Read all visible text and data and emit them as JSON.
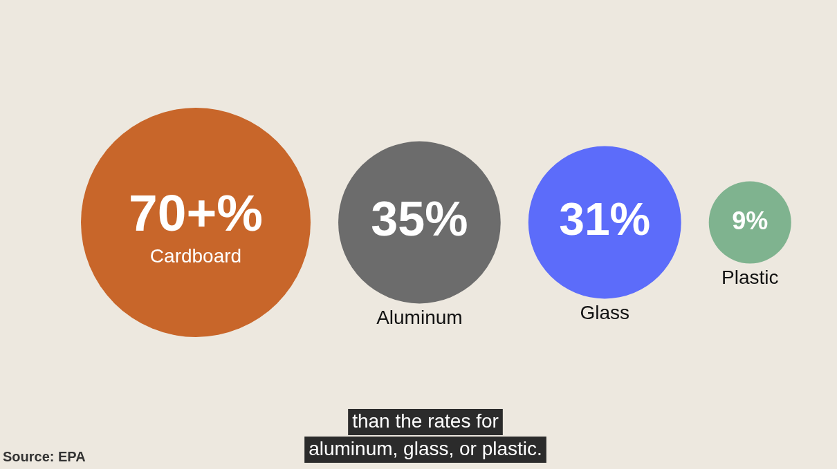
{
  "chart_data": {
    "type": "other",
    "categories": [
      "Cardboard",
      "Aluminum",
      "Glass",
      "Plastic"
    ],
    "values": [
      70,
      35,
      31,
      9
    ],
    "value_labels": [
      "70+%",
      "35%",
      "31%",
      "9%"
    ],
    "colors": [
      "#c8662a",
      "#6c6c6c",
      "#5c6cfa",
      "#7fb38f"
    ],
    "annotations": [
      "than the rates for\naluminum, glass, or plastic.",
      "Source: EPA"
    ]
  }
}
